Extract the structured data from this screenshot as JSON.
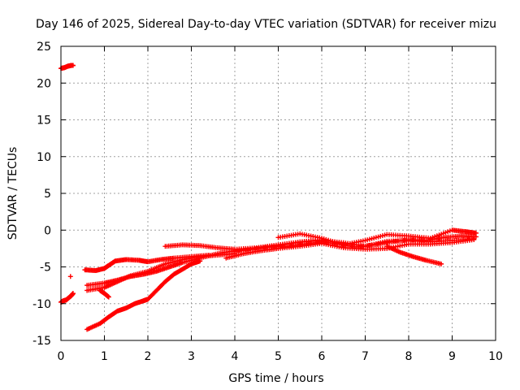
{
  "chart_data": {
    "type": "scatter",
    "title": "Day 146 of 2025, Sidereal Day-to-day VTEC variation (SDTVAR) for receiver mizu",
    "xlabel": "GPS time / hours",
    "ylabel": "SDTVAR / TECUs",
    "xlim": [
      0,
      10
    ],
    "ylim": [
      -15,
      25
    ],
    "xticks": [
      "0",
      "1",
      "2",
      "3",
      "4",
      "5",
      "6",
      "7",
      "8",
      "9",
      "10"
    ],
    "yticks": [
      "-15",
      "-10",
      "-5",
      "0",
      "5",
      "10",
      "15",
      "20",
      "25"
    ],
    "grid": true,
    "marker": "plus",
    "marker_color": "#ff0000",
    "series": [
      {
        "name": "trace-upper-early",
        "x": [
          0.0,
          0.08,
          0.16,
          0.24,
          0.28
        ],
        "y": [
          22.0,
          22.1,
          22.3,
          22.4,
          22.4
        ]
      },
      {
        "name": "trace-lower-early",
        "x": [
          0.0,
          0.06,
          0.12,
          0.18,
          0.24,
          0.28
        ],
        "y": [
          -9.8,
          -9.6,
          -9.5,
          -9.2,
          -8.9,
          -8.6
        ]
      },
      {
        "name": "trace-isolated",
        "x": [
          0.22
        ],
        "y": [
          -6.3
        ]
      },
      {
        "name": "trace-a",
        "x": [
          0.55,
          0.8,
          1.0,
          1.1,
          1.25,
          1.5,
          1.8,
          2.0,
          2.3,
          2.6,
          3.0,
          3.4
        ],
        "y": [
          -5.4,
          -5.5,
          -5.2,
          -4.8,
          -4.2,
          -4.0,
          -4.1,
          -4.3,
          -4.0,
          -3.8,
          -3.6,
          -3.4
        ]
      },
      {
        "name": "trace-b",
        "x": [
          0.6,
          1.0,
          1.3,
          1.6,
          1.9,
          2.2,
          2.5,
          2.8,
          3.2,
          3.6,
          4.0,
          4.5,
          5.0,
          5.5,
          6.0
        ],
        "y": [
          -7.5,
          -7.2,
          -6.8,
          -6.3,
          -6.0,
          -5.6,
          -5.0,
          -4.4,
          -3.8,
          -3.2,
          -2.8,
          -2.4,
          -2.0,
          -1.6,
          -1.3
        ]
      },
      {
        "name": "trace-c",
        "x": [
          0.6,
          1.0,
          1.3,
          1.6,
          2.0,
          2.4,
          2.8,
          3.2,
          3.6,
          4.0
        ],
        "y": [
          -8.2,
          -7.8,
          -7.0,
          -6.2,
          -5.6,
          -4.6,
          -4.0,
          -3.6,
          -3.4,
          -3.2
        ]
      },
      {
        "name": "trace-d",
        "x": [
          0.6,
          0.9,
          1.1,
          1.3,
          1.5,
          1.7,
          1.9,
          2.0,
          2.2,
          2.4,
          2.6,
          2.8,
          3.0,
          3.2
        ],
        "y": [
          -13.5,
          -12.7,
          -11.8,
          -11.0,
          -10.6,
          -10.0,
          -9.6,
          -9.4,
          -8.2,
          -7.0,
          -6.0,
          -5.3,
          -4.6,
          -4.2
        ]
      },
      {
        "name": "trace-e",
        "x": [
          0.9,
          1.0,
          1.1
        ],
        "y": [
          -8.2,
          -8.6,
          -9.1
        ]
      },
      {
        "name": "trace-f",
        "x": [
          2.4,
          2.8,
          3.2,
          3.6,
          4.0,
          4.5,
          5.0,
          5.5,
          6.0,
          6.5,
          7.0,
          7.5,
          8.0,
          8.5,
          9.0,
          9.5
        ],
        "y": [
          -2.2,
          -2.0,
          -2.1,
          -2.4,
          -2.6,
          -2.4,
          -2.1,
          -1.6,
          -1.4,
          -1.7,
          -2.2,
          -1.5,
          -1.4,
          -1.6,
          -1.4,
          -1.2
        ]
      },
      {
        "name": "trace-g",
        "x": [
          3.8,
          4.2,
          4.6,
          5.0,
          5.5,
          6.0,
          6.5,
          7.0,
          7.5,
          8.0,
          8.5,
          9.0,
          9.5
        ],
        "y": [
          -3.8,
          -3.2,
          -2.8,
          -2.5,
          -2.2,
          -1.8,
          -2.4,
          -2.6,
          -2.5,
          -1.9,
          -1.9,
          -1.7,
          -1.3
        ]
      },
      {
        "name": "trace-h",
        "x": [
          5.0,
          5.5,
          6.0,
          6.5,
          7.0,
          7.5,
          8.0,
          8.5,
          9.0,
          9.3,
          9.55
        ],
        "y": [
          -1.0,
          -0.5,
          -1.1,
          -2.0,
          -1.4,
          -0.6,
          -0.8,
          -1.1,
          0.0,
          -0.2,
          -0.4
        ]
      },
      {
        "name": "trace-i",
        "x": [
          7.5,
          7.8,
          8.1,
          8.4,
          8.75
        ],
        "y": [
          -2.2,
          -3.0,
          -3.6,
          -4.1,
          -4.6
        ]
      },
      {
        "name": "trace-j",
        "x": [
          4.0,
          4.4,
          4.8,
          5.2,
          5.6,
          6.0,
          6.4,
          6.8,
          7.2,
          7.6,
          8.0,
          8.4,
          8.8,
          9.2,
          9.55
        ],
        "y": [
          -2.9,
          -2.6,
          -2.3,
          -2.2,
          -1.9,
          -1.6,
          -1.9,
          -2.3,
          -2.0,
          -1.6,
          -1.3,
          -1.4,
          -1.0,
          -0.8,
          -0.9
        ]
      }
    ]
  }
}
